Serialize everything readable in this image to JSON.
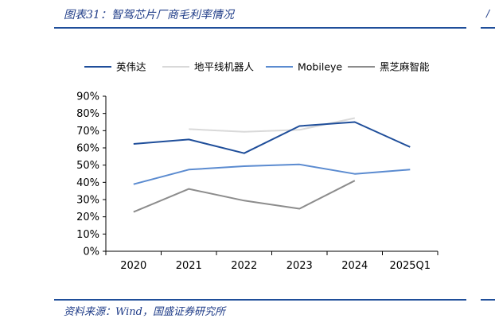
{
  "header": {
    "title": "图表31：智驾芯片厂商毛利率情况"
  },
  "footer": {
    "source": "资料来源：Wind，国盛证券研究所"
  },
  "chart_data": {
    "type": "line",
    "categories": [
      "2020",
      "2021",
      "2022",
      "2023",
      "2024",
      "2025Q1"
    ],
    "ylim": [
      0,
      90
    ],
    "yticks": [
      "0%",
      "10%",
      "20%",
      "30%",
      "40%",
      "50%",
      "60%",
      "70%",
      "80%",
      "90%"
    ],
    "grid": false,
    "legend_position": "top",
    "series": [
      {
        "name": "英伟达",
        "color": "#1f4e9a",
        "values": [
          62.3,
          64.9,
          56.9,
          72.7,
          75.0,
          60.5
        ]
      },
      {
        "name": "地平线机器人",
        "color": "#d9d9d9",
        "values": [
          null,
          70.9,
          69.3,
          70.5,
          77.3,
          null
        ]
      },
      {
        "name": "Mobileye",
        "color": "#5b8bd0",
        "values": [
          38.9,
          47.4,
          49.4,
          50.4,
          44.9,
          47.4
        ]
      },
      {
        "name": "黑芝麻智能",
        "color": "#8c8c8c",
        "values": [
          22.8,
          36.2,
          29.4,
          24.7,
          41.0,
          null
        ]
      }
    ]
  }
}
